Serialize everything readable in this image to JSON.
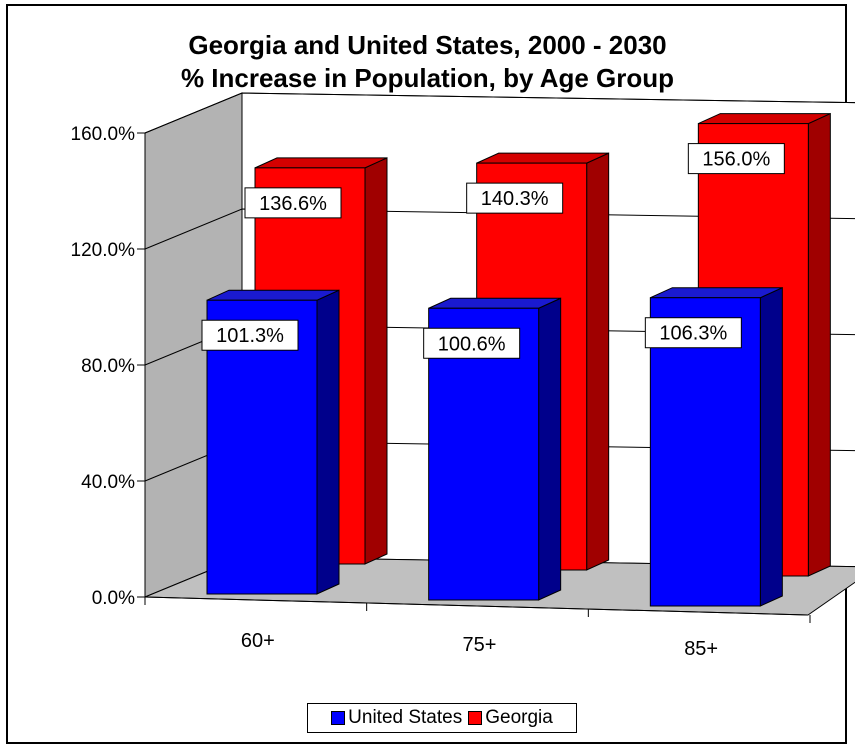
{
  "chart_data": {
    "type": "bar",
    "title_line1": "Georgia and United States, 2000 - 2030",
    "title_line2": "% Increase in Population, by Age Group",
    "categories": [
      "60+",
      "75+",
      "85+"
    ],
    "series": [
      {
        "name": "United States",
        "values": [
          101.3,
          100.6,
          106.3
        ],
        "labels": [
          "101.3%",
          "100.6%",
          "106.3%"
        ],
        "color": "#0000ff",
        "side_color": "#00008b",
        "top_color": "#1a1ad0"
      },
      {
        "name": "Georgia",
        "values": [
          136.6,
          140.3,
          156.0
        ],
        "labels": [
          "136.6%",
          "140.3%",
          "156.0%"
        ],
        "color": "#ff0000",
        "side_color": "#a00000",
        "top_color": "#d40000"
      }
    ],
    "y_ticks": [
      "0.0%",
      "40.0%",
      "80.0%",
      "120.0%",
      "160.0%"
    ],
    "ylim": [
      0,
      160
    ],
    "grid": true,
    "legend_position": "bottom",
    "wall_color": "#b3b3b3",
    "floor_color": "#c0c0c0"
  }
}
